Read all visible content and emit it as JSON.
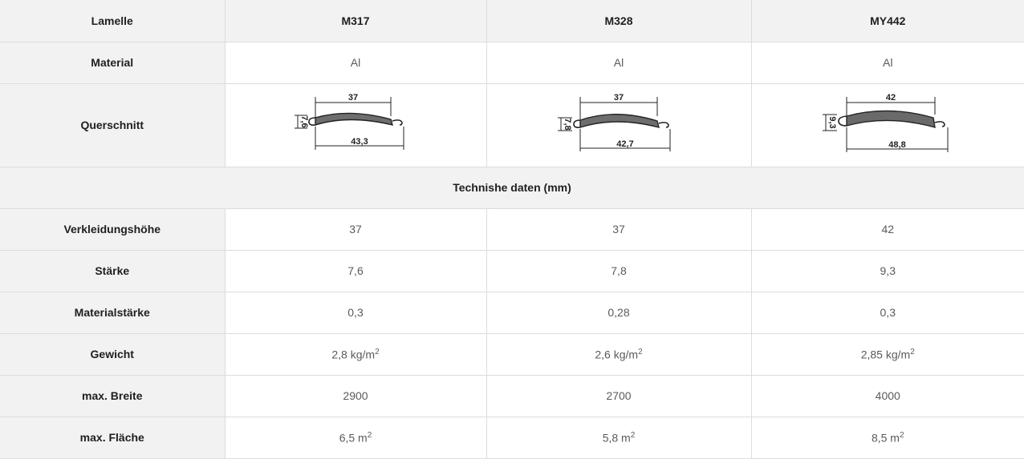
{
  "table": {
    "header": {
      "label": "Lamelle",
      "models": [
        "M317",
        "M328",
        "MY442"
      ]
    },
    "material": {
      "label": "Material",
      "values": [
        "Al",
        "Al",
        "Al"
      ]
    },
    "profile": {
      "label": "Querschnitt",
      "drawings": [
        {
          "model": "M317",
          "top": "37",
          "height": "7,6",
          "bottom": "43,3",
          "fill": "#6e6e6e"
        },
        {
          "model": "M328",
          "top": "37",
          "height": "7,8",
          "bottom": "42,7",
          "fill": "#6e6e6e"
        },
        {
          "model": "MY442",
          "top": "42",
          "height": "9,3",
          "bottom": "48,8",
          "fill": "#6a6a6a"
        }
      ]
    },
    "section_title": "Technishe daten (mm)",
    "rows": [
      {
        "label": "Verkleidungshöhe",
        "values": [
          "37",
          "37",
          "42"
        ]
      },
      {
        "label": "Stärke",
        "values": [
          "7,6",
          "7,8",
          "9,3"
        ]
      },
      {
        "label": "Materialstärke",
        "values": [
          "0,3",
          "0,28",
          "0,3"
        ]
      },
      {
        "label": "Gewicht",
        "values": [
          "2,8 kg/m",
          "2,6 kg/m",
          "2,85 kg/m"
        ],
        "unit_exp": "2"
      },
      {
        "label": "max. Breite",
        "values": [
          "2900",
          "2700",
          "4000"
        ]
      },
      {
        "label": "max. Fläche",
        "values": [
          "6,5 m",
          "5,8 m",
          "8,5 m"
        ],
        "unit_exp": "2"
      }
    ]
  }
}
